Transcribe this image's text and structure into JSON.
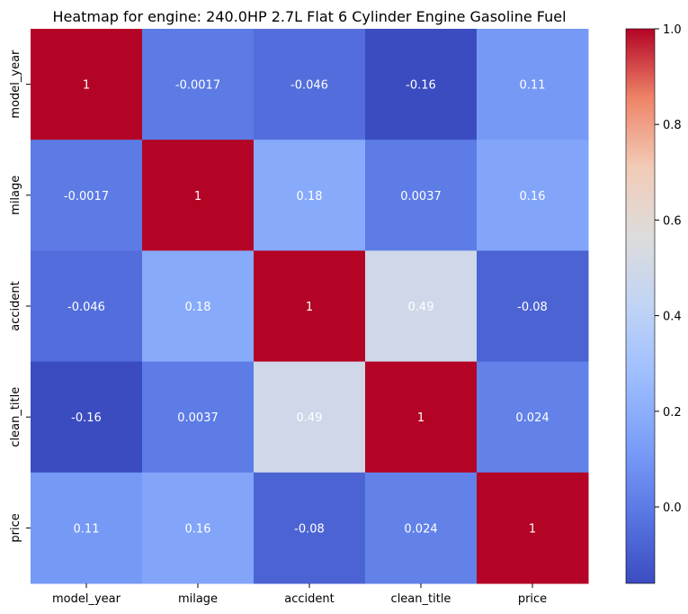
{
  "chart_data": {
    "type": "heatmap",
    "title": "Heatmap for engine: 240.0HP 2.7L Flat 6 Cylinder Engine Gasoline Fuel",
    "xlabel": "",
    "ylabel": "",
    "x_categories": [
      "model_year",
      "milage",
      "accident",
      "clean_title",
      "price"
    ],
    "y_categories": [
      "model_year",
      "milage",
      "accident",
      "clean_title",
      "price"
    ],
    "values": [
      [
        1,
        -0.0017,
        -0.046,
        -0.16,
        0.11
      ],
      [
        -0.0017,
        1,
        0.18,
        0.0037,
        0.16
      ],
      [
        -0.046,
        0.18,
        1,
        0.49,
        -0.08
      ],
      [
        -0.16,
        0.0037,
        0.49,
        1,
        0.024
      ],
      [
        0.11,
        0.16,
        -0.08,
        0.024,
        1
      ]
    ],
    "annotations": [
      [
        "1",
        "-0.0017",
        "-0.046",
        "-0.16",
        "0.11"
      ],
      [
        "-0.0017",
        "1",
        "0.18",
        "0.0037",
        "0.16"
      ],
      [
        "-0.046",
        "0.18",
        "1",
        "0.49",
        "-0.08"
      ],
      [
        "-0.16",
        "0.0037",
        "0.49",
        "1",
        "0.024"
      ],
      [
        "0.11",
        "0.16",
        "-0.08",
        "0.024",
        "1"
      ]
    ],
    "colorbar": {
      "colormap": "coolwarm",
      "vmin": -0.16,
      "vmax": 1.0,
      "ticks": [
        "0.0",
        "0.2",
        "0.4",
        "0.6",
        "0.8",
        "1.0"
      ],
      "tick_values": [
        0.0,
        0.2,
        0.4,
        0.6,
        0.8,
        1.0
      ]
    },
    "grid": false,
    "legend": "colorbar-right"
  }
}
